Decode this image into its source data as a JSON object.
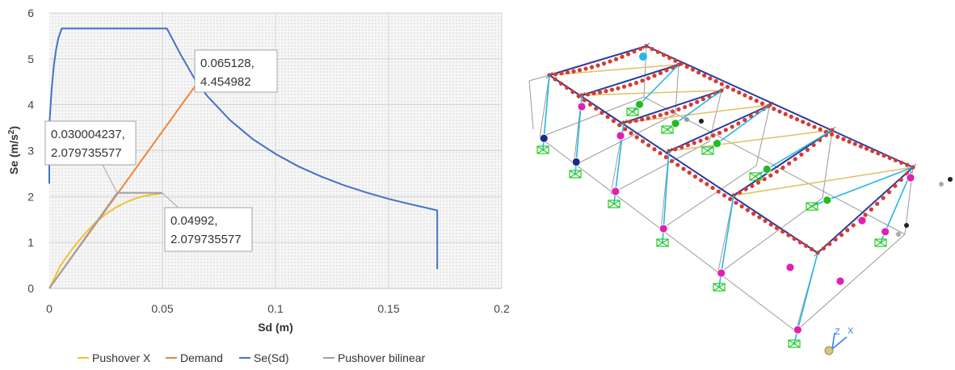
{
  "chart_data": {
    "type": "line",
    "title": "",
    "xlabel": "Sd (m)",
    "ylabel_main": "Se (m/s",
    "ylabel_sup": "2",
    "ylabel_close": ")",
    "xlim": [
      0,
      0.2
    ],
    "ylim": [
      0,
      6
    ],
    "xticks": [
      0,
      0.05,
      0.1,
      0.15,
      0.2
    ],
    "xtick_labels": [
      "0",
      "0.05",
      "0.1",
      "0.15",
      "0.2"
    ],
    "yticks": [
      0,
      1,
      2,
      3,
      4,
      5,
      6
    ],
    "ytick_labels": [
      "0",
      "1",
      "2",
      "3",
      "4",
      "5",
      "6"
    ],
    "grid": true,
    "legend_position": "bottom",
    "series": [
      {
        "name": "Pushover X",
        "color": "#f2c12e",
        "points": [
          [
            0,
            0
          ],
          [
            0.005,
            0.5
          ],
          [
            0.01,
            0.85
          ],
          [
            0.015,
            1.15
          ],
          [
            0.02,
            1.42
          ],
          [
            0.025,
            1.62
          ],
          [
            0.03,
            1.78
          ],
          [
            0.035,
            1.9
          ],
          [
            0.04,
            1.99
          ],
          [
            0.045,
            2.04
          ],
          [
            0.0499,
            2.07
          ]
        ]
      },
      {
        "name": "Demand",
        "color": "#f08536",
        "points": [
          [
            0,
            0
          ],
          [
            0.065128,
            4.454982
          ]
        ]
      },
      {
        "name": "Se(Sd)",
        "color": "#4472c4",
        "points": [
          [
            0,
            2.28
          ],
          [
            0,
            3.55
          ],
          [
            0.001,
            4.3
          ],
          [
            0.002,
            4.85
          ],
          [
            0.003,
            5.2
          ],
          [
            0.004,
            5.45
          ],
          [
            0.0055,
            5.66
          ],
          [
            0.052,
            5.66
          ],
          [
            0.058,
            5.1
          ],
          [
            0.065,
            4.5
          ],
          [
            0.07,
            4.18
          ],
          [
            0.08,
            3.66
          ],
          [
            0.09,
            3.25
          ],
          [
            0.1,
            2.93
          ],
          [
            0.11,
            2.66
          ],
          [
            0.12,
            2.44
          ],
          [
            0.13,
            2.25
          ],
          [
            0.14,
            2.09
          ],
          [
            0.15,
            1.95
          ],
          [
            0.16,
            1.83
          ],
          [
            0.1715,
            1.7
          ],
          [
            0.1715,
            0.42
          ]
        ]
      },
      {
        "name": "Pushover bilinear",
        "color": "#a0a0a0",
        "points": [
          [
            0,
            0
          ],
          [
            0.030004237,
            2.079735577
          ],
          [
            0.04992,
            2.079735577
          ]
        ]
      }
    ],
    "annotations": [
      {
        "line1": "0.065128,",
        "line2": "4.454982",
        "x": 0.065128,
        "y": 4.454982
      },
      {
        "line1": "0.030004237,",
        "line2": "2.079735577",
        "x": 0.030004237,
        "y": 2.079735577
      },
      {
        "line1": "0.04992,",
        "line2": "2.079735577",
        "x": 0.04992,
        "y": 2.079735577
      }
    ]
  },
  "model_view": {
    "description_labels": [],
    "axis_labels": [
      "Z",
      "X"
    ],
    "colors": {
      "frame": "#9a9a9a",
      "beam_hinge": "#d83a2e",
      "column": "#29b6e6",
      "brace": "#e0c060",
      "hinge_magenta": "#e020b0",
      "hinge_green": "#22bb22",
      "hinge_navy": "#1a2a8a",
      "hinge_cyan": "#22b8e8",
      "support": "#22cc22"
    }
  }
}
